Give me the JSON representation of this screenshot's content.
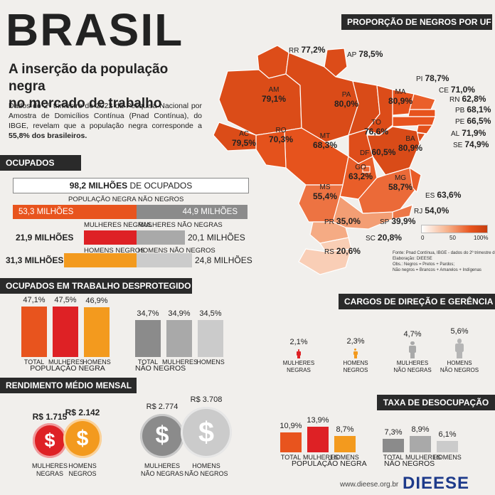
{
  "header": {
    "title": "BRASIL",
    "subtitle_line1": "A inserção da população negra",
    "subtitle_line2": "no mercado de trabalho",
    "intro_text": "Dados do 2º trimestre de 2022 da Pesquisa Nacional por Amostra de Domicílios Contínua (Pnad Contínua), do IBGE, revelam que a população negra corresponde a",
    "intro_highlight": "55,8% dos brasileiros."
  },
  "ocupados": {
    "section_title": "OCUPADOS",
    "total_value": "98,2 MILHÕES",
    "total_suffix": "DE OCUPADOS",
    "label_pop_negra": "POPULAÇÃO NEGRA",
    "label_nao_negros": "NÃO NEGROS",
    "pop_negra_value": "53,3 MILHÕES",
    "nao_negros_value": "44,9 MILHÕES",
    "label_mulheres_negras": "MULHERES NEGRAS",
    "label_mulheres_nao_negras": "MULHERES NÃO NEGRAS",
    "mulheres_negras_value": "21,9 MILHÕES",
    "mulheres_nao_negras_value": "20,1 MILHÕES",
    "label_homens_negros": "HOMENS NEGROS",
    "label_homens_nao_negros": "HOMENS NÃO NEGROS",
    "homens_negros_value": "31,3 MILHÕES",
    "homens_nao_negros_value": "24,8 MILHÕES"
  },
  "desprotegido": {
    "section_title": "OCUPADOS EM TRABALHO DESPROTEGIDO",
    "negra": [
      {
        "label": "TOTAL",
        "value": "47,1%",
        "num": 47.1,
        "color": "#e8541e"
      },
      {
        "label": "MULHERES",
        "value": "47,5%",
        "num": 47.5,
        "color": "#de2125"
      },
      {
        "label": "HOMENS",
        "value": "46,9%",
        "num": 46.9,
        "color": "#f39a1e"
      }
    ],
    "negra_group": "POPULAÇÃO NEGRA",
    "nao_negros": [
      {
        "label": "TOTAL",
        "value": "34,7%",
        "num": 34.7,
        "color": "#8b8b8b"
      },
      {
        "label": "MULHERES",
        "value": "34,9%",
        "num": 34.9,
        "color": "#a9a9a9"
      },
      {
        "label": "HOMENS",
        "value": "34,5%",
        "num": 34.5,
        "color": "#cbcbcb"
      }
    ],
    "nao_negros_group": "NÃO NEGROS"
  },
  "rendimento": {
    "section_title": "RENDIMENTO MÉDIO MENSAL",
    "items": [
      {
        "label1": "MULHERES",
        "label2": "NEGRAS",
        "value": "R$ 1.715",
        "num": 1715,
        "color": "#de2125"
      },
      {
        "label1": "HOMENS",
        "label2": "NEGROS",
        "value": "R$ 2.142",
        "num": 2142,
        "color": "#f39a1e"
      },
      {
        "label1": "MULHERES",
        "label2": "NÃO NEGRAS",
        "value": "R$ 2.774",
        "num": 2774,
        "color": "#8b8b8b"
      },
      {
        "label1": "HOMENS",
        "label2": "NÃO NEGROS",
        "value": "R$ 3.708",
        "num": 3708,
        "color": "#cbcbcb"
      }
    ],
    "currency_symbol": "$"
  },
  "mapa": {
    "section_title": "PROPORÇÃO DE NEGROS POR UF",
    "states": [
      {
        "uf": "RR",
        "value": "77,2%",
        "num": 77.2
      },
      {
        "uf": "AP",
        "value": "78,5%",
        "num": 78.5
      },
      {
        "uf": "AM",
        "value": "79,1%",
        "num": 79.1
      },
      {
        "uf": "PA",
        "value": "80,0%",
        "num": 80.0
      },
      {
        "uf": "MA",
        "value": "80,9%",
        "num": 80.9
      },
      {
        "uf": "PI",
        "value": "78,7%",
        "num": 78.7
      },
      {
        "uf": "CE",
        "value": "71,0%",
        "num": 71.0
      },
      {
        "uf": "RN",
        "value": "62,8%",
        "num": 62.8
      },
      {
        "uf": "PB",
        "value": "68,1%",
        "num": 68.1
      },
      {
        "uf": "PE",
        "value": "66,5%",
        "num": 66.5
      },
      {
        "uf": "AL",
        "value": "71,9%",
        "num": 71.9
      },
      {
        "uf": "SE",
        "value": "74,9%",
        "num": 74.9
      },
      {
        "uf": "BA",
        "value": "80,9%",
        "num": 80.9
      },
      {
        "uf": "TO",
        "value": "76,6%",
        "num": 76.6
      },
      {
        "uf": "DF",
        "value": "60,5%",
        "num": 60.5
      },
      {
        "uf": "GO",
        "value": "63,2%",
        "num": 63.2
      },
      {
        "uf": "MT",
        "value": "68,3%",
        "num": 68.3
      },
      {
        "uf": "RO",
        "value": "70,3%",
        "num": 70.3
      },
      {
        "uf": "AC",
        "value": "79,5%",
        "num": 79.5
      },
      {
        "uf": "MS",
        "value": "55,4%",
        "num": 55.4
      },
      {
        "uf": "MG",
        "value": "58,7%",
        "num": 58.7
      },
      {
        "uf": "ES",
        "value": "63,6%",
        "num": 63.6
      },
      {
        "uf": "RJ",
        "value": "54,0%",
        "num": 54.0
      },
      {
        "uf": "SP",
        "value": "39,9%",
        "num": 39.9
      },
      {
        "uf": "PR",
        "value": "35,0%",
        "num": 35.0
      },
      {
        "uf": "SC",
        "value": "20,8%",
        "num": 20.8
      },
      {
        "uf": "RS",
        "value": "20,6%",
        "num": 20.6
      }
    ],
    "legend_min": "0",
    "legend_mid": "50",
    "legend_max": "100%",
    "note1": "Fonte: Pnad Contínua, IBGE - dados do 2º trimestre de 2022",
    "note2": "Elaboração: DIEESE",
    "note3": "Obs.: Negros = Pretos + Pardos;",
    "note4": "Não negros = Brancos + Amarelos + Indígenas"
  },
  "cargos": {
    "section_title": "CARGOS DE DIREÇÃO E GERÊNCIA",
    "items": [
      {
        "label1": "MULHERES",
        "label2": "NEGRAS",
        "value": "2,1%",
        "num": 2.1,
        "color": "#de2125"
      },
      {
        "label1": "HOMENS",
        "label2": "NEGROS",
        "value": "2,3%",
        "num": 2.3,
        "color": "#f39a1e"
      },
      {
        "label1": "MULHERES",
        "label2": "NÃO NEGRAS",
        "value": "4,7%",
        "num": 4.7,
        "color": "#a9a9a9"
      },
      {
        "label1": "HOMENS",
        "label2": "NÃO NEGROS",
        "value": "5,6%",
        "num": 5.6,
        "color": "#b5b5b5"
      }
    ]
  },
  "desocupacao": {
    "section_title": "TAXA DE DESOCUPAÇÃO",
    "negra": [
      {
        "label": "TOTAL",
        "value": "10,9%",
        "num": 10.9,
        "color": "#e8541e"
      },
      {
        "label": "MULHERES",
        "value": "13,9%",
        "num": 13.9,
        "color": "#de2125"
      },
      {
        "label": "HOMENS",
        "value": "8,7%",
        "num": 8.7,
        "color": "#f39a1e"
      }
    ],
    "negra_group": "POPULAÇÃO NEGRA",
    "nao_negros": [
      {
        "label": "TOTAL",
        "value": "7,3%",
        "num": 7.3,
        "color": "#8b8b8b"
      },
      {
        "label": "MULHERES",
        "value": "8,9%",
        "num": 8.9,
        "color": "#a9a9a9"
      },
      {
        "label": "HOMENS",
        "value": "6,1%",
        "num": 6.1,
        "color": "#cbcbcb"
      }
    ],
    "nao_negros_group": "NÃO NEGROS"
  },
  "footer": {
    "url": "www.dieese.org.br",
    "logo": "DIEESE"
  },
  "colors": {
    "negra_total": "#e8541e",
    "mulheres_negras": "#de2125",
    "homens_negros": "#f39a1e",
    "nao_negros_dark": "#8b8b8b",
    "nao_negros_mid": "#a9a9a9",
    "nao_negros_light": "#cbcbcb",
    "header_bg": "#2a2a2a",
    "logo_blue": "#1d3a8a",
    "logo_red": "#d61f26"
  }
}
